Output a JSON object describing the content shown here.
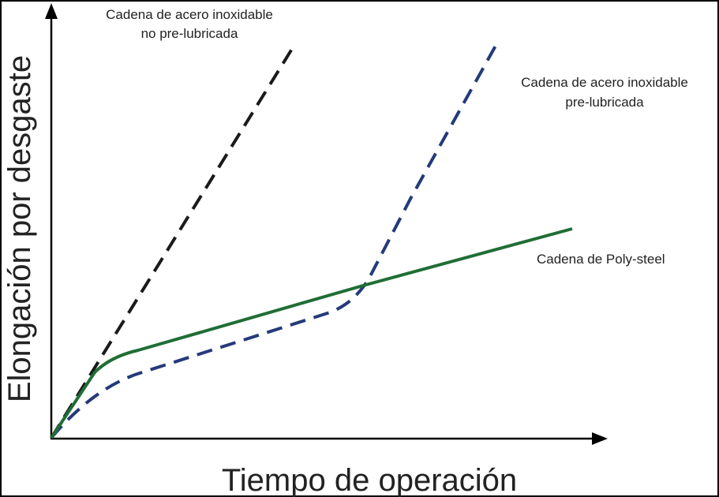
{
  "axes": {
    "x_label": "Tiempo de operación",
    "y_label": "Elongación por desgaste"
  },
  "curves": [
    {
      "label_lines": [
        "Cadena de acero inoxidable",
        "no pre-lubricada"
      ]
    },
    {
      "label_lines": [
        "Cadena de acero inoxidable",
        "pre-lubricada"
      ]
    },
    {
      "label_lines": [
        "Cadena de Poly-steel"
      ]
    }
  ]
}
